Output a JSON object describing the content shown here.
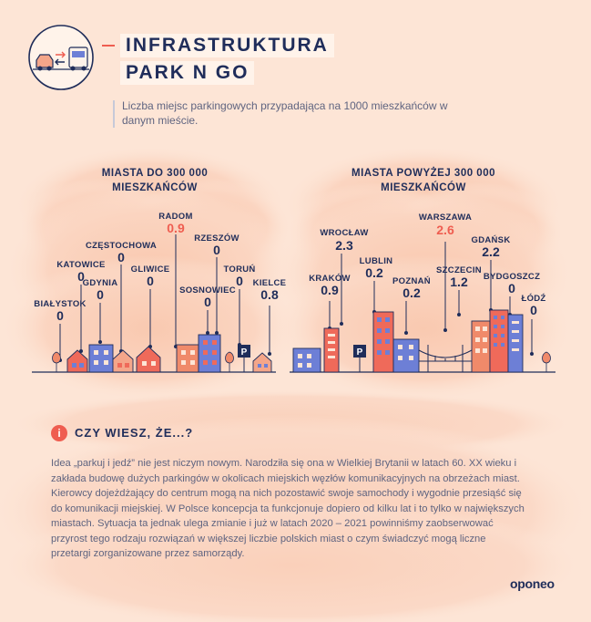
{
  "header": {
    "title_line1": "INFRASTRUKTURA",
    "title_line2": "PARK N GO",
    "subtitle": "Liczba miejsc parkingowych przypadająca na 1000 mieszkańców w danym mieście."
  },
  "colors": {
    "background": "#fde5d6",
    "navy": "#1f2d5a",
    "accent": "#ef5d50",
    "building_blue": "#6d7fd6",
    "building_red": "#ef6a5a",
    "building_peach": "#f4a68a"
  },
  "small_cities": {
    "title_line1": "MIASTA DO 300 000",
    "title_line2": "MIESZKAŃCÓW",
    "cities": [
      {
        "name": "RADOM",
        "value": "0.9",
        "highlight": true
      },
      {
        "name": "CZĘSTOCHOWA",
        "value": "0"
      },
      {
        "name": "RZESZÓW",
        "value": "0"
      },
      {
        "name": "KATOWICE",
        "value": "0"
      },
      {
        "name": "GLIWICE",
        "value": "0"
      },
      {
        "name": "TORUŃ",
        "value": "0"
      },
      {
        "name": "GDYNIA",
        "value": "0"
      },
      {
        "name": "SOSNOWIEC",
        "value": "0"
      },
      {
        "name": "KIELCE",
        "value": "0.8"
      },
      {
        "name": "BIAŁYSTOK",
        "value": "0"
      }
    ]
  },
  "large_cities": {
    "title_line1": "MIASTA POWYŻEJ 300 000",
    "title_line2": "MIESZKAŃCÓW",
    "cities": [
      {
        "name": "WARSZAWA",
        "value": "2.6",
        "highlight": true
      },
      {
        "name": "WROCŁAW",
        "value": "2.3"
      },
      {
        "name": "GDAŃSK",
        "value": "2.2"
      },
      {
        "name": "LUBLIN",
        "value": "0.2"
      },
      {
        "name": "KRAKÓW",
        "value": "0.9"
      },
      {
        "name": "POZNAŃ",
        "value": "0.2"
      },
      {
        "name": "SZCZECIN",
        "value": "1.2"
      },
      {
        "name": "BYDGOSZCZ",
        "value": "0"
      },
      {
        "name": "ŁÓDŹ",
        "value": "0"
      }
    ]
  },
  "fact": {
    "icon": "info-icon",
    "icon_glyph": "i",
    "title": "CZY WIESZ, ŻE...?",
    "text": "Idea „parkuj i jedź” nie jest niczym nowym. Narodziła się ona w Wielkiej Brytanii w latach 60. XX wieku i zakłada budowę dużych parkingów w okolicach miejskich węzłów komunikacyjnych na obrzeżach miast. Kierowcy dojeżdżający do centrum mogą na nich pozostawić swoje samochody i wygodnie przesiąść się do komunikacji miejskiej. W Polsce koncepcja ta funkcjonuje dopiero od kilku lat i to tylko w największych miastach. Sytuacja ta jednak ulega zmianie i już w latach 2020 – 2021 powinniśmy zaobserwować przyrost tego rodzaju rozwiązań w większej liczbie polskich miast o czym świadczyć mogą liczne przetargi zorganizowane przez samorządy."
  },
  "logo": "oponeo",
  "parking_sign": "P"
}
